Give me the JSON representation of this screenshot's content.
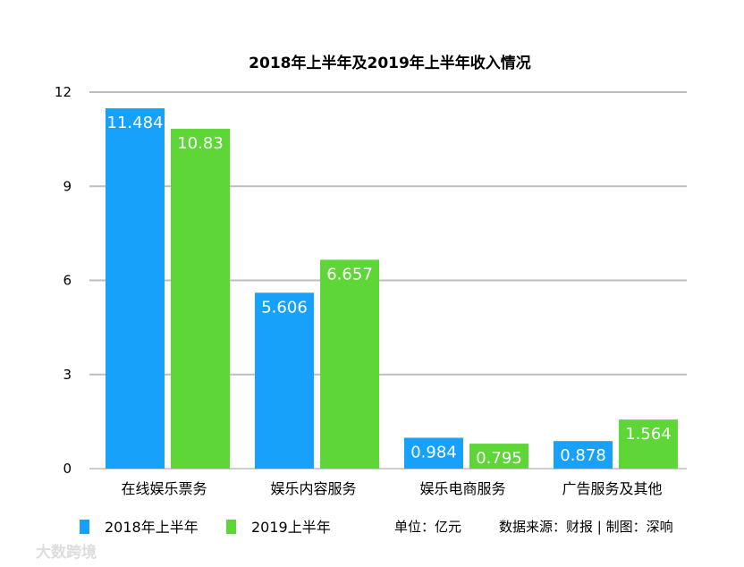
{
  "chart_data": {
    "type": "bar",
    "title": "2018年上半年及2019年上半年收入情况",
    "categories": [
      "在线娱乐票务",
      "娱乐内容服务",
      "娱乐电商服务",
      "广告服务及其他"
    ],
    "series": [
      {
        "name": "2018年上半年",
        "values": [
          11.484,
          5.606,
          0.984,
          0.878
        ],
        "color": "#17a1fb"
      },
      {
        "name": "2019上半年",
        "values": [
          10.83,
          6.657,
          0.795,
          1.564
        ],
        "color": "#5ed637"
      }
    ],
    "ylim": [
      0,
      12
    ],
    "yticks": [
      0,
      3,
      6,
      9,
      12
    ],
    "grid": true,
    "legend": "bottom-left",
    "xlabel": "",
    "ylabel": ""
  },
  "notes": {
    "unit": "单位：亿元",
    "source": "数据来源：财报 | 制图：深响"
  },
  "watermark": "大数跨境"
}
